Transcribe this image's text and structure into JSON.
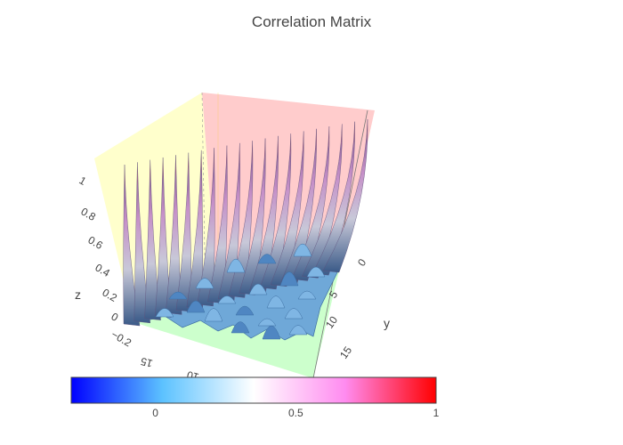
{
  "chart_data": {
    "type": "surface",
    "title": "Correlation Matrix",
    "axes": {
      "x": {
        "title": "",
        "tick_labels": [
          "10",
          "15"
        ],
        "range": [
          0,
          19
        ]
      },
      "y": {
        "title": "y",
        "tick_labels": [
          "0",
          "5",
          "10",
          "15"
        ],
        "range": [
          0,
          19
        ]
      },
      "z": {
        "title": "z",
        "tick_labels": [
          "−0.2",
          "0",
          "0.2",
          "0.4",
          "0.6",
          "0.8",
          "1"
        ],
        "range": [
          -0.2,
          1
        ]
      }
    },
    "matrix_size": 20,
    "diagonal_value": 1,
    "off_diagonal_range": [
      -0.2,
      0.3
    ],
    "colorscale": {
      "range": [
        -0.3,
        1
      ],
      "stops": [
        "#0000ff",
        "#5cc2ff",
        "#ffffff",
        "#ff8cf0",
        "#ff0000"
      ],
      "tick_labels": [
        "0",
        "0.5",
        "1"
      ],
      "tick_values": [
        0,
        0.5,
        1
      ]
    },
    "scene_colors": {
      "x_wall": "#ffffcc",
      "y_wall": "#ffcccc",
      "floor": "#ccffcc"
    }
  }
}
